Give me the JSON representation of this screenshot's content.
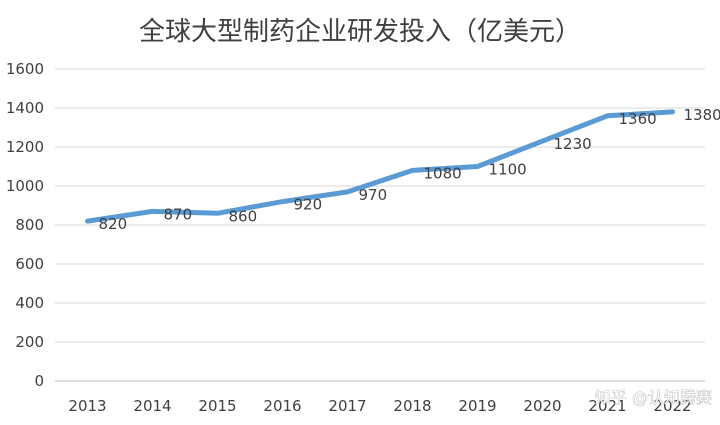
{
  "chart_data": {
    "type": "line",
    "title": "全球大型制药企业研发投入（亿美元）",
    "categories": [
      "2013",
      "2014",
      "2015",
      "2016",
      "2017",
      "2018",
      "2019",
      "2020",
      "2021",
      "2022"
    ],
    "series": [
      {
        "values": [
          820,
          870,
          860,
          920,
          970,
          1080,
          1100,
          1230,
          1360,
          1380
        ]
      }
    ],
    "data_labels": [
      "820",
      "870",
      "860",
      "920",
      "970",
      "1080",
      "1100",
      "1230",
      "1360",
      "1380"
    ],
    "ylim": [
      0,
      1600
    ],
    "yticks": [
      0,
      200,
      400,
      600,
      800,
      1000,
      1200,
      1400,
      1600
    ],
    "grid": true,
    "legend": "none",
    "colors": {
      "line": "#5b9bd5",
      "text": "#404040",
      "grid": "#d9d9d9"
    }
  },
  "watermark": {
    "text": "知乎 @认知腾赛"
  }
}
